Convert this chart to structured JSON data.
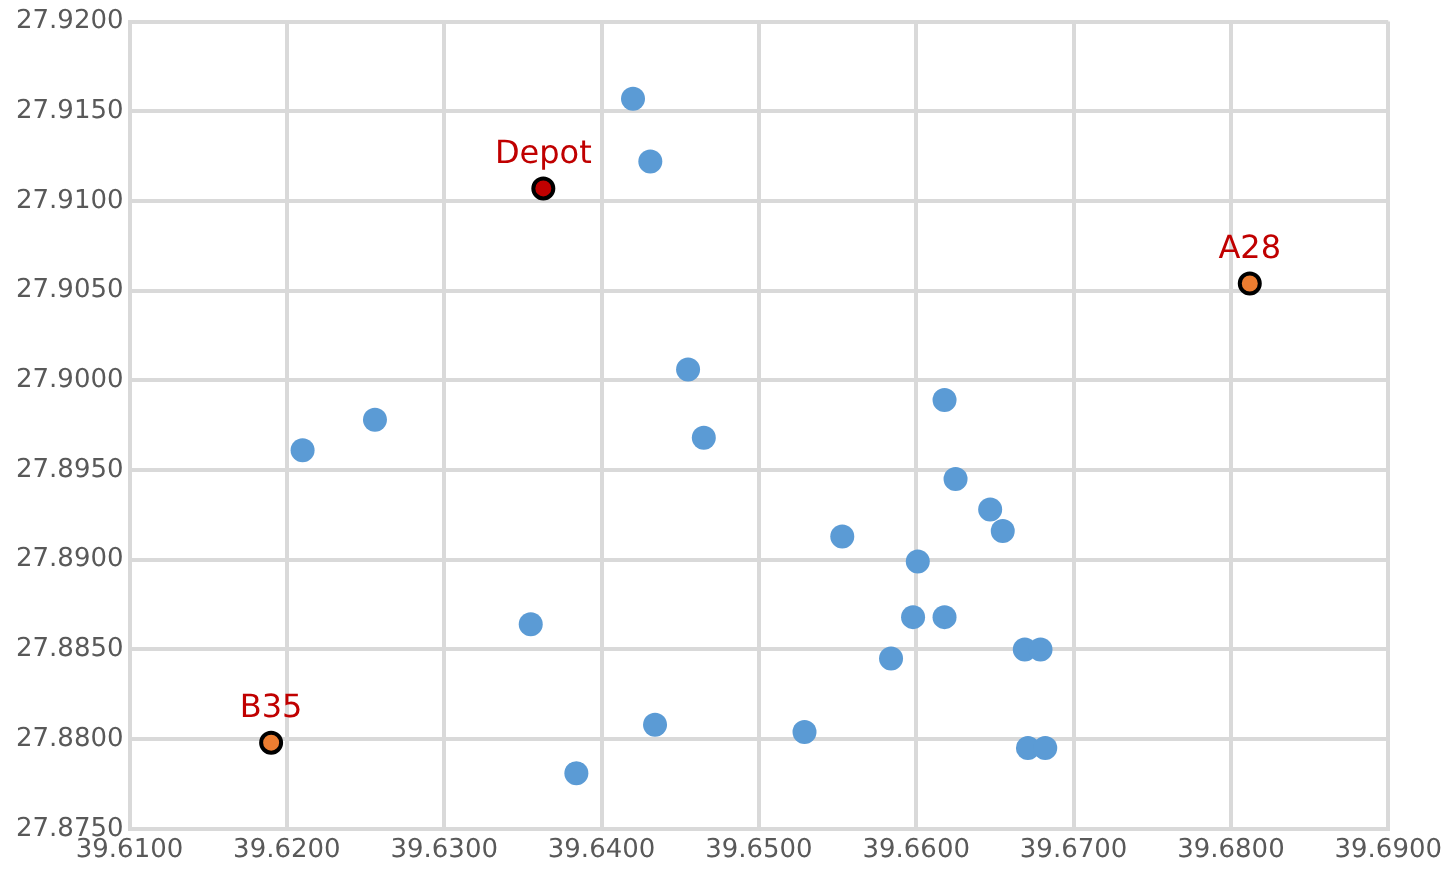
{
  "chart_data": {
    "type": "scatter",
    "series": [
      {
        "color": "#5b9bd5",
        "x": [
          39.642,
          39.6431,
          39.6455,
          39.6465,
          39.6618,
          39.6256,
          39.621,
          39.6625,
          39.6647,
          39.6655,
          39.6553,
          39.6601,
          39.6355,
          39.6598,
          39.6618,
          39.6584,
          39.6669,
          39.6679,
          39.6434,
          39.6529,
          39.6384,
          39.6671,
          39.6682
        ],
        "values": [
          27.9157,
          27.9122,
          27.9006,
          27.8968,
          27.8989,
          27.8978,
          27.8961,
          27.8945,
          27.8928,
          27.8916,
          27.8913,
          27.8899,
          27.8864,
          27.8868,
          27.8868,
          27.8845,
          27.885,
          27.885,
          27.8808,
          27.8804,
          27.8781,
          27.8795,
          27.8795
        ]
      },
      {
        "color": "#c00000",
        "x": [
          39.6363
        ],
        "values": [
          27.9107
        ]
      },
      {
        "color": "#ed7d31",
        "x": [
          39.6812,
          39.619
        ],
        "values": [
          27.9054,
          27.8798
        ]
      }
    ],
    "annotations": [
      {
        "text": "Depot",
        "x": 39.6363,
        "y": 27.9107
      },
      {
        "text": "A28",
        "x": 39.6812,
        "y": 27.9054
      },
      {
        "text": "B35",
        "x": 39.619,
        "y": 27.8798
      }
    ],
    "xlim": [
      39.61,
      39.69
    ],
    "xticks": [
      {
        "value": 39.61,
        "label": "39.6100"
      },
      {
        "value": 39.62,
        "label": "39.6200"
      },
      {
        "value": 39.63,
        "label": "39.6300"
      },
      {
        "value": 39.64,
        "label": "39.6400"
      },
      {
        "value": 39.65,
        "label": "39.6500"
      },
      {
        "value": 39.66,
        "label": "39.6600"
      },
      {
        "value": 39.67,
        "label": "39.6700"
      },
      {
        "value": 39.68,
        "label": "39.6800"
      },
      {
        "value": 39.69,
        "label": "39.6900"
      }
    ],
    "ylim": [
      27.875,
      27.92
    ],
    "yticks": [
      {
        "value": 27.875,
        "label": "27.8750"
      },
      {
        "value": 27.88,
        "label": "27.8800"
      },
      {
        "value": 27.885,
        "label": "27.8850"
      },
      {
        "value": 27.89,
        "label": "27.8900"
      },
      {
        "value": 27.895,
        "label": "27.8950"
      },
      {
        "value": 27.9,
        "label": "27.9000"
      },
      {
        "value": 27.905,
        "label": "27.9050"
      },
      {
        "value": 27.91,
        "label": "27.9100"
      },
      {
        "value": 27.915,
        "label": "27.9150"
      },
      {
        "value": 27.92,
        "label": "27.9200"
      }
    ],
    "grid": true,
    "legend": false,
    "marker": "circle"
  }
}
